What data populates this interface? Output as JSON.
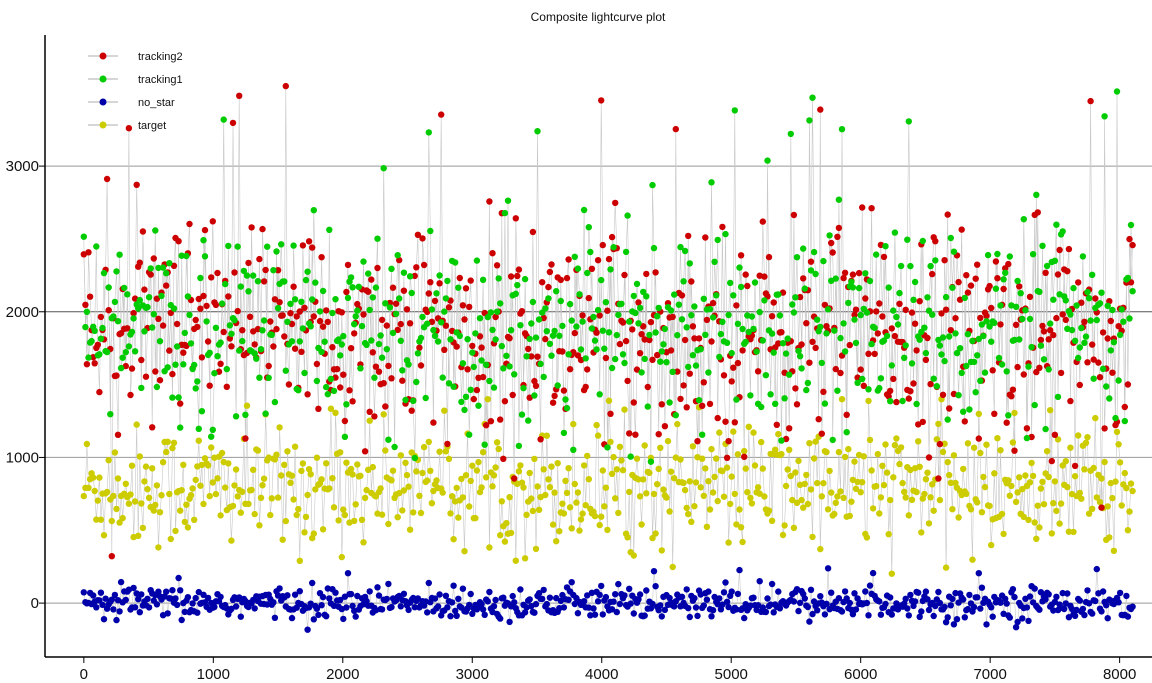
{
  "chart_data": {
    "type": "scatter",
    "title": "Composite lightcurve plot",
    "xlabel": "",
    "ylabel": "",
    "xlim": [
      -300,
      8250
    ],
    "ylim": [
      -370,
      3900
    ],
    "x_ticks": [
      0,
      1000,
      2000,
      3000,
      4000,
      5000,
      6000,
      7000,
      8000
    ],
    "y_ticks": [
      0,
      1000,
      2000,
      3000
    ],
    "grid": "horizontal",
    "legend_position": "top-left",
    "n_points": 8100,
    "series": [
      {
        "name": "tracking2",
        "color": "#cc0000",
        "mean": 1850,
        "spread": 380,
        "max_peak": 3600
      },
      {
        "name": "tracking1",
        "color": "#00cc00",
        "mean": 1880,
        "spread": 340,
        "max_peak": 3540
      },
      {
        "name": "no_star",
        "color": "#0000aa",
        "mean": 0,
        "spread": 55,
        "max_peak": 250
      },
      {
        "name": "target",
        "color": "#cccc00",
        "mean": 800,
        "spread": 210,
        "max_peak": 1400
      }
    ],
    "line_color": "#c8c8c8"
  }
}
